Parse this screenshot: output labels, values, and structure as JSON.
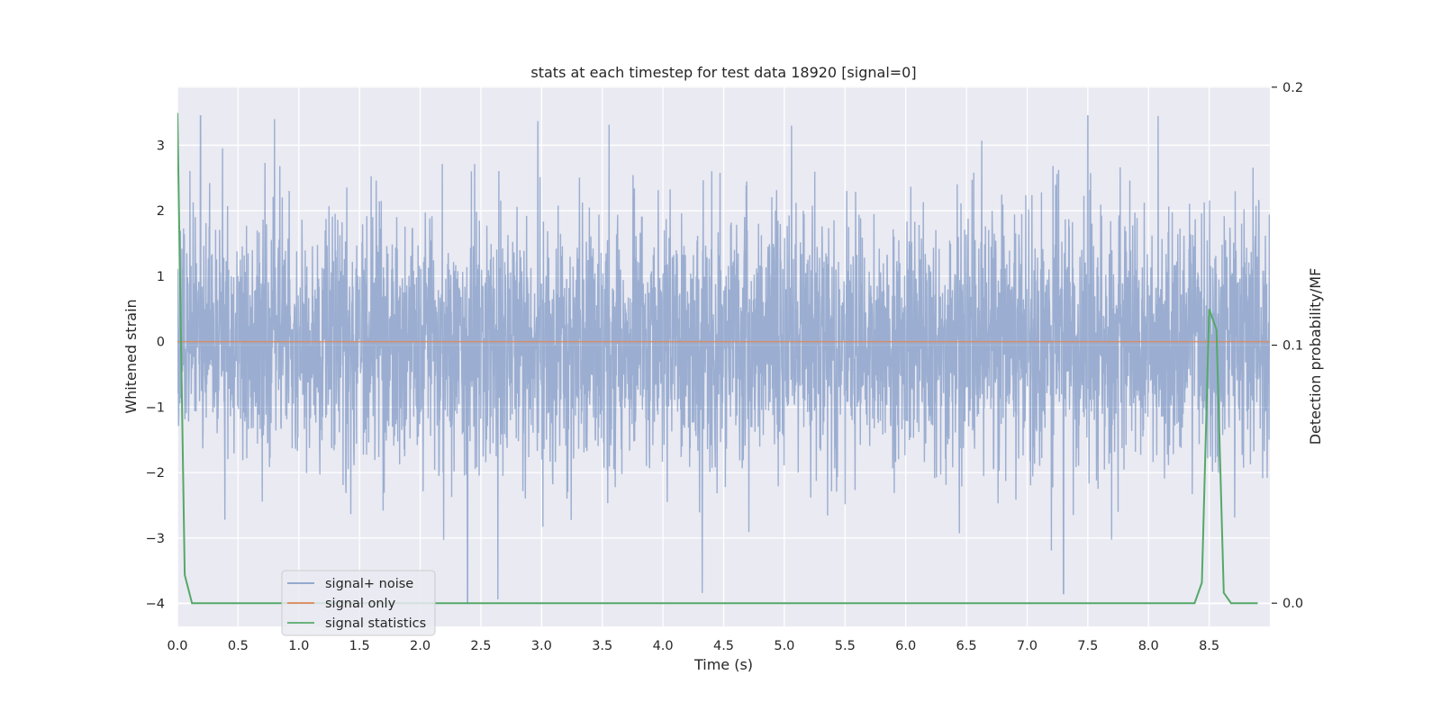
{
  "chart_data": {
    "type": "line",
    "title": "stats at each timestep for test data 18920 [signal=0]",
    "xlabel": "Time (s)",
    "ylabel": "Whitened strain",
    "y2label": "Detection probability/MF",
    "xlim": [
      0.0,
      9.0
    ],
    "ylim": [
      -4.35,
      3.9
    ],
    "y2lim": [
      -0.009,
      0.2003
    ],
    "xticks": [
      "0.0",
      "0.5",
      "1.0",
      "1.5",
      "2.0",
      "2.5",
      "3.0",
      "3.5",
      "4.0",
      "4.5",
      "5.0",
      "5.5",
      "6.0",
      "6.5",
      "7.0",
      "7.5",
      "8.0",
      "8.5"
    ],
    "yticks": [
      3,
      2,
      1,
      0,
      -1,
      -2,
      -3,
      -4
    ],
    "ytick_labels": [
      "3",
      "2",
      "1",
      "0",
      "−1",
      "−2",
      "−3",
      "−4"
    ],
    "y2ticks": [
      0.2,
      0.1,
      0.0
    ],
    "y2tick_labels": [
      "0.2",
      "0.1",
      "0.0"
    ],
    "grid": true,
    "legend_position": "lower-left",
    "series": [
      {
        "name": "signal+ noise",
        "color": "#4c72b0",
        "axis": "left",
        "note_samples": 4096,
        "peaks": [
          {
            "x": 0.19,
            "y": 3.45
          },
          {
            "x": 0.8,
            "y": 3.4
          },
          {
            "x": 2.39,
            "y": -4.0
          },
          {
            "x": 2.97,
            "y": 3.37
          },
          {
            "x": 5.06,
            "y": 3.3
          },
          {
            "x": 7.3,
            "y": -3.85
          },
          {
            "x": 7.5,
            "y": 3.45
          }
        ]
      },
      {
        "name": "signal only",
        "color": "#dd8452",
        "axis": "left",
        "x": [
          0.0,
          9.0
        ],
        "y": [
          0.0,
          0.0
        ]
      },
      {
        "name": "signal statistics",
        "color": "#55a868",
        "axis": "right",
        "x": [
          0.0,
          0.06,
          0.12,
          8.38,
          8.44,
          8.5,
          8.56,
          8.62,
          8.68,
          8.9
        ],
        "y": [
          0.19,
          0.011,
          0.0,
          0.0,
          0.008,
          0.114,
          0.106,
          0.004,
          0.0,
          0.0
        ]
      }
    ]
  }
}
